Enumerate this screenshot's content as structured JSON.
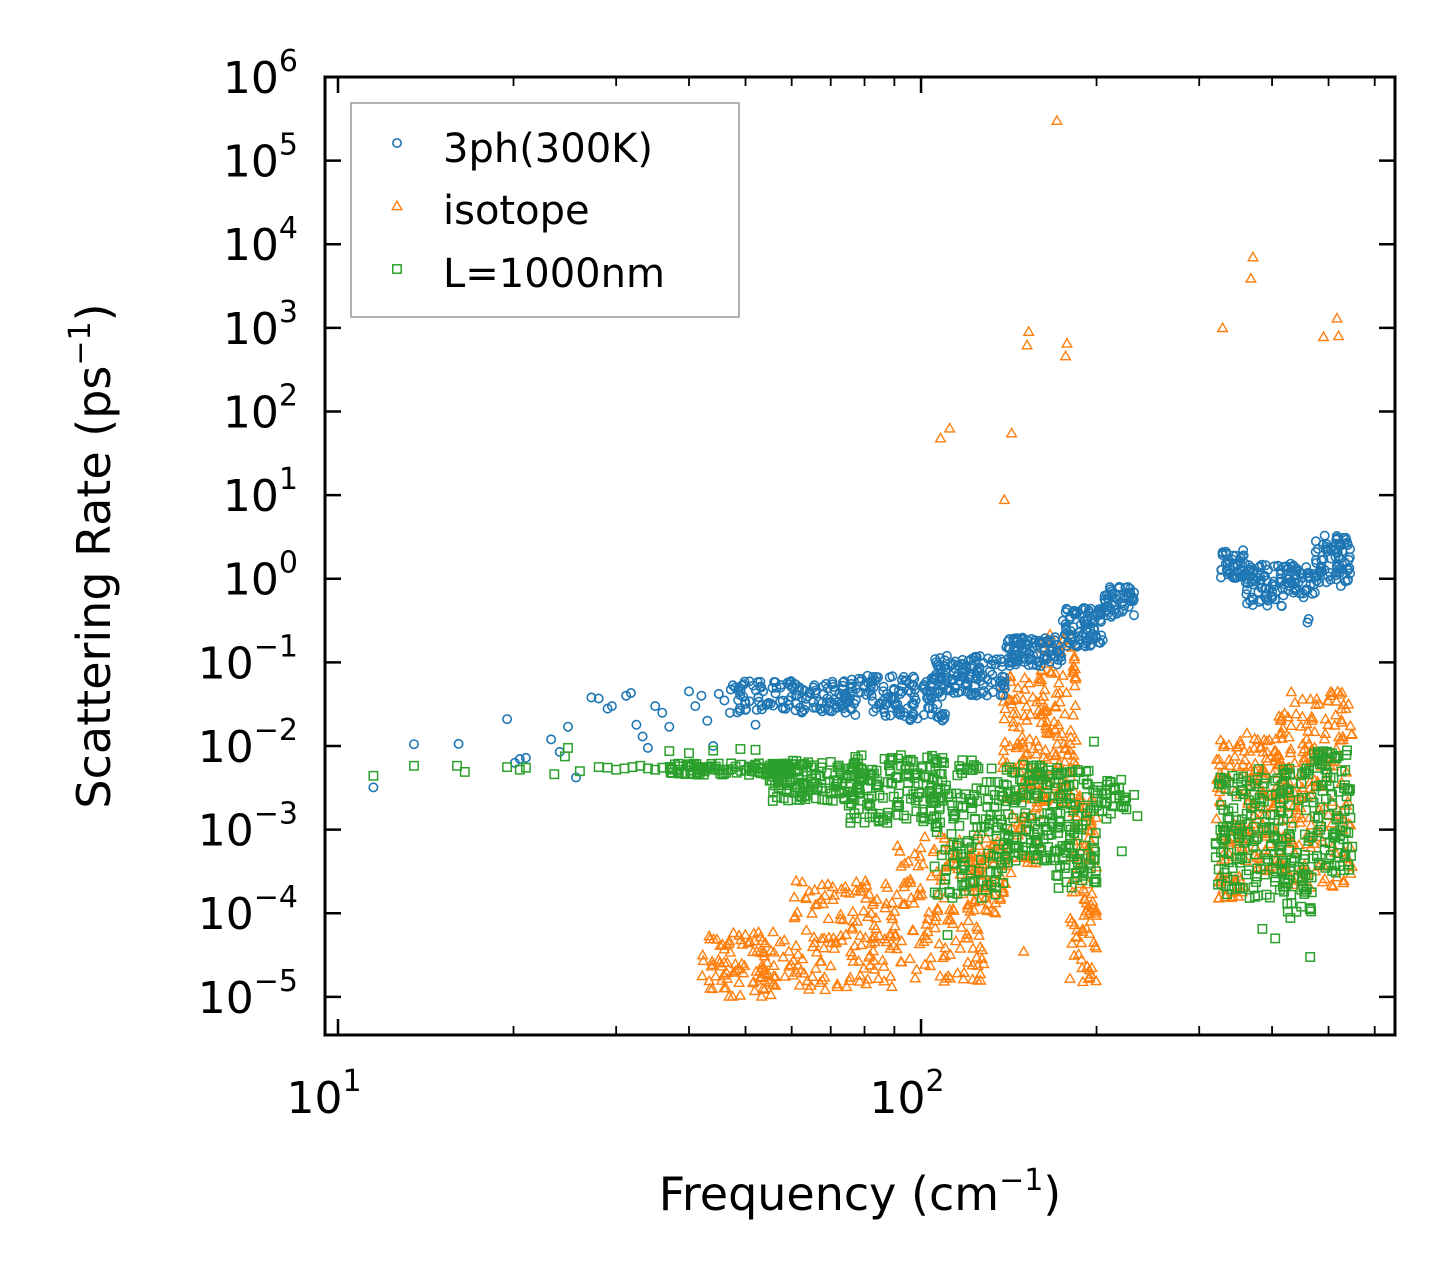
{
  "chart_data": {
    "type": "scatter",
    "title": "",
    "xlabel": "Frequency (cm",
    "xlabel_sup": "−1",
    "xlabel_tail": ")",
    "ylabel": "Scattering Rate (ps",
    "ylabel_sup": "−1",
    "ylabel_tail": ")",
    "xscale": "log",
    "yscale": "log",
    "xlim": [
      9.5,
      650
    ],
    "ylim": [
      3.5e-06,
      1000000.0
    ],
    "x_ticks": [
      {
        "value": 10,
        "base": "10",
        "exp": "1"
      },
      {
        "value": 100,
        "base": "10",
        "exp": "2"
      }
    ],
    "y_ticks": [
      {
        "value": 1e-05,
        "base": "10",
        "exp": "−5"
      },
      {
        "value": 0.0001,
        "base": "10",
        "exp": "−4"
      },
      {
        "value": 0.001,
        "base": "10",
        "exp": "−3"
      },
      {
        "value": 0.01,
        "base": "10",
        "exp": "−2"
      },
      {
        "value": 0.1,
        "base": "10",
        "exp": "−1"
      },
      {
        "value": 1,
        "base": "10",
        "exp": "0"
      },
      {
        "value": 10,
        "base": "10",
        "exp": "1"
      },
      {
        "value": 100,
        "base": "10",
        "exp": "2"
      },
      {
        "value": 1000,
        "base": "10",
        "exp": "3"
      },
      {
        "value": 10000,
        "base": "10",
        "exp": "4"
      },
      {
        "value": 100000,
        "base": "10",
        "exp": "5"
      },
      {
        "value": 1000000,
        "base": "10",
        "exp": "6"
      }
    ],
    "legend": {
      "position": "top-left"
    },
    "series": [
      {
        "name": "3ph(300K)",
        "marker": "circle",
        "color": "#1f77b4",
        "points": [
          [
            11.5,
            0.0032
          ],
          [
            13.5,
            0.0105
          ],
          [
            16.1,
            0.0106
          ],
          [
            19.5,
            0.021
          ],
          [
            20.1,
            0.0063
          ],
          [
            20.5,
            0.007
          ],
          [
            21.0,
            0.0072
          ],
          [
            23.2,
            0.012
          ],
          [
            24.0,
            0.0085
          ],
          [
            24.8,
            0.017
          ],
          [
            25.6,
            0.0042
          ],
          [
            27.2,
            0.038
          ],
          [
            28.0,
            0.037
          ],
          [
            29.0,
            0.028
          ],
          [
            29.5,
            0.03
          ],
          [
            31.2,
            0.04
          ],
          [
            31.8,
            0.043
          ],
          [
            32.5,
            0.018
          ],
          [
            33.3,
            0.013
          ],
          [
            34.0,
            0.0095
          ],
          [
            35.0,
            0.03
          ],
          [
            36.0,
            0.025
          ],
          [
            37.0,
            0.017
          ],
          [
            40.0,
            0.045
          ],
          [
            41.0,
            0.03
          ],
          [
            42.0,
            0.04
          ],
          [
            43.0,
            0.02
          ],
          [
            44.0,
            0.01
          ],
          [
            45.0,
            0.042
          ],
          [
            46.0,
            0.035
          ],
          [
            47.0,
            0.025
          ],
          [
            48.0,
            0.05
          ],
          [
            50.0,
            0.032
          ],
          [
            52.0,
            0.018
          ]
        ],
        "bands": [
          [
            47,
            75,
            0.025,
            0.06,
            130
          ],
          [
            75,
            110,
            0.02,
            0.07,
            140
          ],
          [
            105,
            140,
            0.04,
            0.12,
            120
          ],
          [
            140,
            175,
            0.09,
            0.2,
            100
          ],
          [
            175,
            205,
            0.15,
            0.45,
            90
          ],
          [
            205,
            232,
            0.35,
            0.8,
            50
          ],
          [
            325,
            360,
            1.0,
            2.2,
            45
          ],
          [
            360,
            420,
            0.45,
            1.5,
            70
          ],
          [
            420,
            475,
            0.6,
            1.6,
            50
          ],
          [
            475,
            545,
            0.9,
            3.3,
            80
          ]
        ],
        "extra_points": [
          [
            460,
            0.3
          ],
          [
            462,
            0.33
          ],
          [
            525,
            0.82
          ]
        ]
      },
      {
        "name": "isotope",
        "marker": "triangle",
        "color": "#ff7f0e",
        "points": [
          [
            171,
            300000
          ],
          [
            371,
            7000
          ],
          [
            368,
            3900
          ],
          [
            329,
            1000
          ],
          [
            517,
            1300
          ],
          [
            520,
            800
          ],
          [
            490,
            780
          ],
          [
            153,
            900
          ],
          [
            152,
            620
          ],
          [
            178,
            650
          ],
          [
            177,
            460
          ],
          [
            108,
            48
          ],
          [
            112,
            63
          ],
          [
            143,
            55
          ],
          [
            139,
            8.8
          ],
          [
            150,
            3.5e-05
          ]
        ],
        "bands": [
          [
            42,
            60,
            1e-05,
            6e-05,
            100
          ],
          [
            60,
            90,
            1.2e-05,
            0.00025,
            140
          ],
          [
            90,
            130,
            1.5e-05,
            0.0009,
            140
          ],
          [
            120,
            140,
            0.0001,
            0.0008,
            60
          ],
          [
            138,
            160,
            0.0003,
            0.08,
            110
          ],
          [
            160,
            185,
            0.002,
            0.22,
            120
          ],
          [
            180,
            200,
            1.5e-05,
            0.004,
            90
          ],
          [
            320,
            360,
            0.00015,
            0.012,
            80
          ],
          [
            360,
            410,
            0.0003,
            0.015,
            90
          ],
          [
            410,
            460,
            0.0002,
            0.045,
            90
          ],
          [
            460,
            550,
            0.0002,
            0.045,
            110
          ]
        ],
        "extra_points": []
      },
      {
        "name": "L=1000nm",
        "marker": "square",
        "color": "#2ca02c",
        "points": [
          [
            11.5,
            0.0044
          ],
          [
            13.5,
            0.0058
          ],
          [
            16.0,
            0.0058
          ],
          [
            16.5,
            0.0049
          ],
          [
            19.5,
            0.0056
          ],
          [
            20.5,
            0.0052
          ],
          [
            21.0,
            0.0055
          ],
          [
            23.5,
            0.0046
          ],
          [
            24.5,
            0.0075
          ],
          [
            24.8,
            0.0095
          ],
          [
            26.0,
            0.005
          ],
          [
            28.0,
            0.0056
          ],
          [
            29.0,
            0.0055
          ],
          [
            30.0,
            0.0052
          ],
          [
            31.0,
            0.0054
          ],
          [
            32.0,
            0.0056
          ],
          [
            33.0,
            0.0058
          ],
          [
            34.0,
            0.0054
          ],
          [
            35.0,
            0.0052
          ],
          [
            36.0,
            0.0055
          ],
          [
            37.0,
            0.0087
          ],
          [
            40.0,
            0.0082
          ],
          [
            44.0,
            0.0088
          ],
          [
            49.0,
            0.0092
          ],
          [
            52.0,
            0.009
          ],
          [
            111,
            5.5e-05
          ],
          [
            198,
            0.0113
          ],
          [
            235,
            0.00145
          ],
          [
            232,
            0.0026
          ],
          [
            225,
            0.00175
          ],
          [
            208,
            0.00135
          ],
          [
            221,
            0.00055
          ],
          [
            385,
            6.5e-05
          ],
          [
            405,
            5e-05
          ],
          [
            465,
            3e-05
          ],
          [
            430,
            8.8e-05
          ]
        ],
        "bands": [
          [
            37,
            60,
            0.0045,
            0.0062,
            120
          ],
          [
            55,
            80,
            0.0022,
            0.0068,
            130
          ],
          [
            75,
            110,
            0.0012,
            0.0078,
            150
          ],
          [
            105,
            140,
            0.00015,
            0.0068,
            150
          ],
          [
            140,
            170,
            0.0004,
            0.006,
            120
          ],
          [
            170,
            200,
            0.0002,
            0.0055,
            110
          ],
          [
            200,
            225,
            0.0015,
            0.004,
            35
          ],
          [
            320,
            360,
            0.00016,
            0.0045,
            70
          ],
          [
            360,
            420,
            0.00015,
            0.0055,
            90
          ],
          [
            420,
            470,
            0.0001,
            0.006,
            70
          ],
          [
            470,
            550,
            0.0003,
            0.009,
            100
          ]
        ],
        "extra_points": []
      }
    ]
  }
}
